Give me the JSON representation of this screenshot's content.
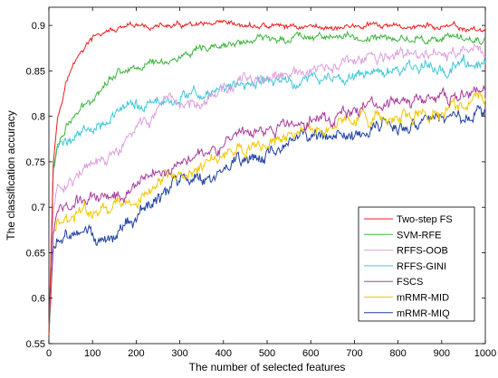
{
  "chart_data": {
    "type": "line",
    "title": "",
    "xlabel": "The number of selected features",
    "ylabel": "The classification accuracy",
    "xlim": [
      0,
      1000
    ],
    "ylim": [
      0.55,
      0.92
    ],
    "xticks": [
      0,
      100,
      200,
      300,
      400,
      500,
      600,
      700,
      800,
      900,
      1000
    ],
    "xtick_labels": [
      "0",
      "100",
      "200",
      "300",
      "400",
      "500",
      "600",
      "700",
      "800",
      "900",
      "1000"
    ],
    "yticks": [
      0.55,
      0.6,
      0.65,
      0.7,
      0.75,
      0.8,
      0.85,
      0.9
    ],
    "ytick_labels": [
      "0.55",
      "0.6",
      "0.65",
      "0.7",
      "0.75",
      "0.8",
      "0.85",
      "0.9"
    ],
    "grid": false,
    "legend_position": "bottom-right",
    "x": [
      0,
      10,
      20,
      40,
      60,
      80,
      100,
      130,
      160,
      200,
      250,
      300,
      350,
      400,
      450,
      500,
      550,
      600,
      650,
      700,
      750,
      800,
      850,
      900,
      950,
      1000
    ],
    "series": [
      {
        "name": "Two-step FS",
        "color": "#ee1c1c",
        "noise": 0.003,
        "values": [
          0.56,
          0.75,
          0.8,
          0.84,
          0.86,
          0.875,
          0.885,
          0.893,
          0.895,
          0.898,
          0.899,
          0.899,
          0.899,
          0.899,
          0.899,
          0.899,
          0.899,
          0.899,
          0.898,
          0.899,
          0.899,
          0.898,
          0.899,
          0.898,
          0.896,
          0.895
        ]
      },
      {
        "name": "SVM-RFE",
        "color": "#3cb43c",
        "noise": 0.004,
        "values": [
          0.56,
          0.74,
          0.77,
          0.79,
          0.8,
          0.81,
          0.82,
          0.84,
          0.85,
          0.855,
          0.86,
          0.865,
          0.87,
          0.877,
          0.882,
          0.885,
          0.887,
          0.89,
          0.888,
          0.886,
          0.886,
          0.885,
          0.886,
          0.885,
          0.884,
          0.885
        ]
      },
      {
        "name": "RFFS-OOB",
        "color": "#dda0dd",
        "noise": 0.006,
        "values": [
          0.56,
          0.7,
          0.72,
          0.73,
          0.735,
          0.74,
          0.745,
          0.75,
          0.76,
          0.785,
          0.805,
          0.81,
          0.82,
          0.83,
          0.838,
          0.84,
          0.843,
          0.848,
          0.852,
          0.86,
          0.863,
          0.866,
          0.867,
          0.868,
          0.869,
          0.87
        ]
      },
      {
        "name": "RFFS-GINI",
        "color": "#40c8d8",
        "noise": 0.006,
        "values": [
          0.56,
          0.74,
          0.765,
          0.775,
          0.78,
          0.785,
          0.79,
          0.8,
          0.805,
          0.81,
          0.815,
          0.82,
          0.825,
          0.83,
          0.835,
          0.838,
          0.838,
          0.84,
          0.842,
          0.845,
          0.848,
          0.85,
          0.852,
          0.855,
          0.858,
          0.86
        ]
      },
      {
        "name": "FSCS",
        "color": "#a83c9c",
        "noise": 0.006,
        "values": [
          0.56,
          0.68,
          0.695,
          0.7,
          0.705,
          0.708,
          0.71,
          0.715,
          0.715,
          0.725,
          0.74,
          0.75,
          0.765,
          0.77,
          0.775,
          0.785,
          0.79,
          0.795,
          0.8,
          0.808,
          0.812,
          0.815,
          0.818,
          0.82,
          0.823,
          0.826
        ]
      },
      {
        "name": "mRMR-MID",
        "color": "#f2c800",
        "noise": 0.007,
        "values": [
          0.56,
          0.67,
          0.68,
          0.685,
          0.69,
          0.693,
          0.695,
          0.7,
          0.7,
          0.71,
          0.725,
          0.735,
          0.745,
          0.755,
          0.76,
          0.77,
          0.78,
          0.785,
          0.79,
          0.795,
          0.798,
          0.8,
          0.802,
          0.805,
          0.81,
          0.82
        ]
      },
      {
        "name": "mRMR-MIQ",
        "color": "#1f3fa0",
        "noise": 0.007,
        "values": [
          0.56,
          0.65,
          0.66,
          0.665,
          0.67,
          0.67,
          0.67,
          0.668,
          0.67,
          0.685,
          0.71,
          0.725,
          0.735,
          0.74,
          0.75,
          0.76,
          0.77,
          0.772,
          0.775,
          0.78,
          0.785,
          0.79,
          0.793,
          0.797,
          0.8,
          0.8
        ]
      }
    ]
  }
}
